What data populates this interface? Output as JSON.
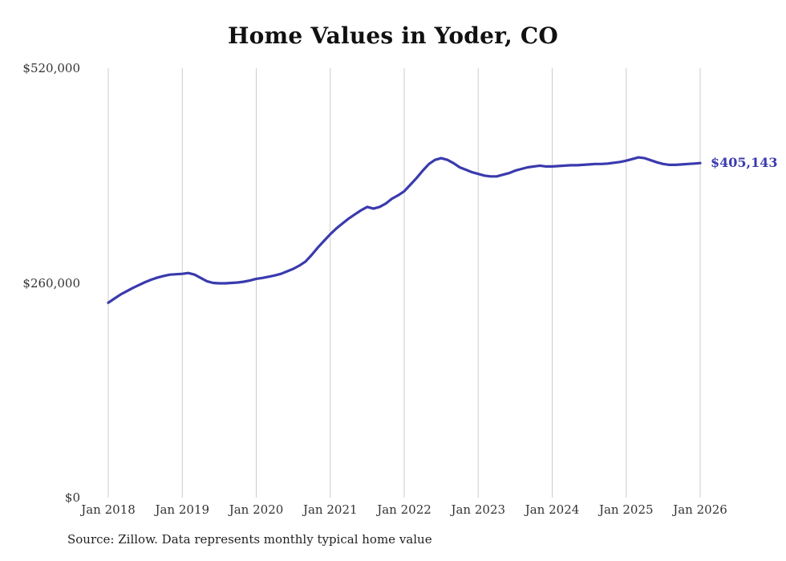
{
  "title": "Home Values in Yoder, CO",
  "source_note": "Source: Zillow. Data represents monthly typical home value",
  "end_label": "$405,143",
  "colors": {
    "line": "#3a3aae",
    "grid": "#cccccc",
    "end_label": "#3a3aae",
    "axis_text": "#333333",
    "title_text": "#111111"
  },
  "chart_data": {
    "type": "line",
    "title": "Home Values in Yoder, CO",
    "xlabel": "",
    "ylabel": "",
    "ylim": [
      0,
      520000
    ],
    "y_tick_labels": [
      {
        "label": "$0",
        "value": 0
      },
      {
        "label": "$260,000",
        "value": 260000
      },
      {
        "label": "$520,000",
        "value": 520000
      }
    ],
    "x_tick_labels": [
      "Jan 2018",
      "Jan 2019",
      "Jan 2020",
      "Jan 2021",
      "Jan 2022",
      "Jan 2023",
      "Jan 2024",
      "Jan 2025",
      "Jan 2026"
    ],
    "grid": "vertical-only",
    "legend_position": "none",
    "frequency": "monthly",
    "x_start": "Jan 2018",
    "x_end": "Jan 2026",
    "final_value": 405143,
    "final_value_label": "$405,143",
    "series": [
      {
        "name": "Typical home value",
        "values": [
          236000,
          241000,
          246000,
          250000,
          254000,
          257500,
          261000,
          264000,
          266500,
          268500,
          270000,
          270500,
          271000,
          272000,
          270000,
          266000,
          262000,
          260000,
          259500,
          259500,
          260000,
          260500,
          261500,
          263000,
          265000,
          266000,
          267500,
          269000,
          271000,
          274000,
          277000,
          281000,
          286000,
          294000,
          303000,
          311000,
          319000,
          326000,
          332000,
          338000,
          343000,
          348000,
          352000,
          350000,
          352000,
          356000,
          362000,
          366000,
          371000,
          379000,
          387000,
          396000,
          404000,
          409000,
          411000,
          409000,
          405000,
          400000,
          397000,
          394000,
          392000,
          390000,
          389000,
          389000,
          391000,
          393000,
          396000,
          398000,
          400000,
          401000,
          402000,
          401000,
          401000,
          401500,
          402000,
          402500,
          402500,
          403000,
          403500,
          404000,
          404000,
          404500,
          405500,
          406500,
          408000,
          410000,
          412000,
          411000,
          408500,
          406000,
          404000,
          403000,
          403000,
          403500,
          404000,
          404500,
          405143
        ]
      }
    ]
  }
}
